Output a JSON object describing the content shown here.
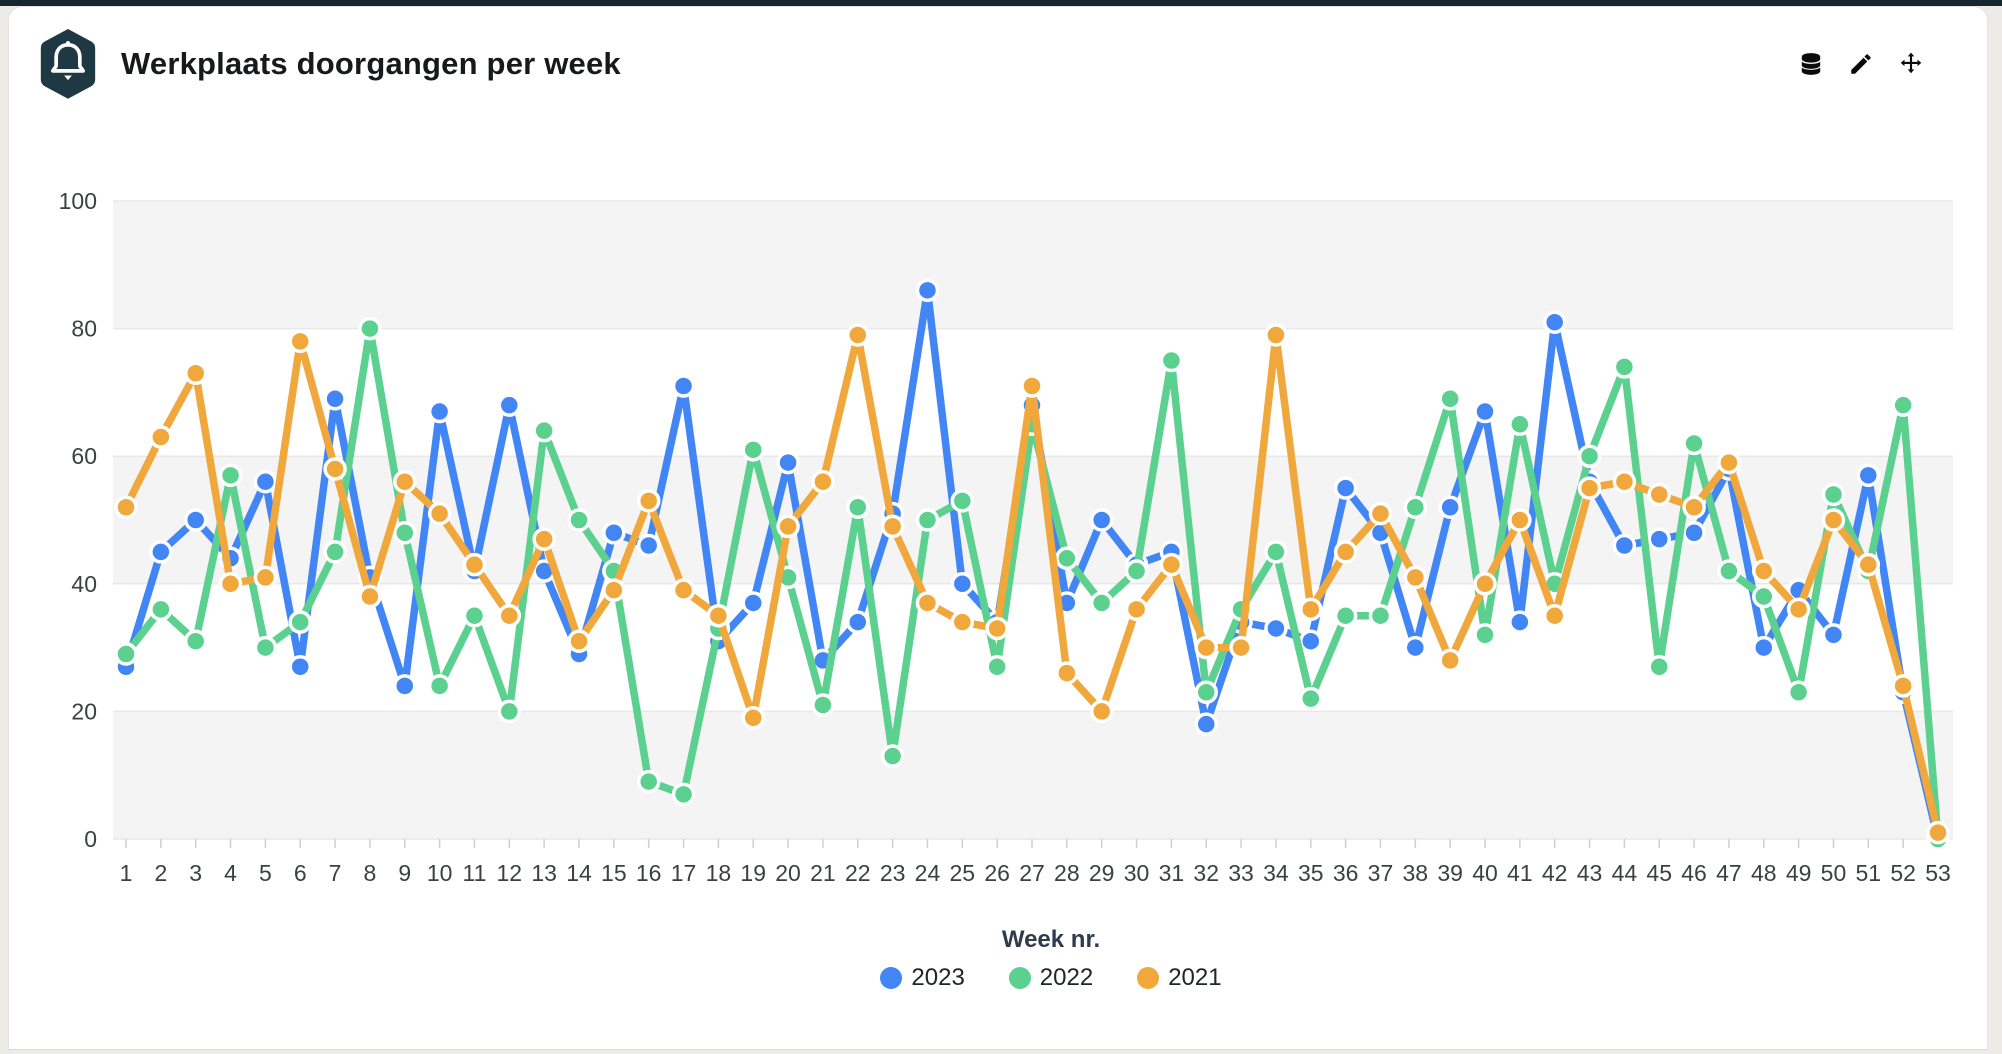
{
  "header": {
    "title": "Werkplaats doorgangen per week",
    "icons": [
      "bell-icon",
      "database-icon",
      "edit-icon",
      "move-icon"
    ]
  },
  "colors": {
    "accent_badge": "#1e3943",
    "band": "#f4f4f5",
    "grid": "#e8e8e8",
    "tick": "#cfcfcf",
    "axis_text": "#3c4043",
    "series_2023": "#4285f4",
    "series_2022": "#5bd08f",
    "series_2021": "#f0a73c"
  },
  "chart_data": {
    "type": "line",
    "title": "Werkplaats doorgangen per week",
    "xlabel": "Week nr.",
    "ylabel": "",
    "ylim": [
      0,
      100
    ],
    "yticks": [
      0,
      20,
      40,
      60,
      80,
      100
    ],
    "grid": "horizontal, alternating shaded bands 80-100 / 40-60 / 0-20",
    "legend_position": "bottom",
    "marker": "circle",
    "weeks": [
      1,
      2,
      3,
      4,
      5,
      6,
      7,
      8,
      9,
      10,
      11,
      12,
      13,
      14,
      15,
      16,
      17,
      18,
      19,
      20,
      21,
      22,
      23,
      24,
      25,
      26,
      27,
      28,
      29,
      30,
      31,
      32,
      33,
      34,
      35,
      36,
      37,
      38,
      39,
      40,
      41,
      42,
      43,
      44,
      45,
      46,
      47,
      48,
      49,
      50,
      51,
      52,
      53
    ],
    "series": [
      {
        "name": "2023",
        "color": "#4285f4",
        "values": [
          27,
          45,
          50,
          44,
          56,
          27,
          69,
          41,
          24,
          67,
          42,
          68,
          42,
          29,
          48,
          46,
          71,
          31,
          37,
          59,
          28,
          34,
          51,
          86,
          40,
          34,
          68,
          37,
          50,
          43,
          45,
          18,
          34,
          33,
          31,
          55,
          48,
          30,
          52,
          67,
          34,
          81,
          56,
          46,
          47,
          48,
          58,
          30,
          39,
          32,
          57,
          23,
          0
        ]
      },
      {
        "name": "2022",
        "color": "#5bd08f",
        "values": [
          29,
          36,
          31,
          57,
          30,
          34,
          45,
          80,
          48,
          24,
          35,
          20,
          64,
          50,
          42,
          9,
          7,
          33,
          61,
          41,
          21,
          52,
          13,
          50,
          53,
          27,
          65,
          44,
          37,
          42,
          75,
          23,
          36,
          45,
          22,
          35,
          35,
          52,
          69,
          32,
          65,
          40,
          60,
          74,
          27,
          62,
          42,
          38,
          23,
          54,
          42,
          68,
          0
        ]
      },
      {
        "name": "2021",
        "color": "#f0a73c",
        "values": [
          52,
          63,
          73,
          40,
          41,
          78,
          58,
          38,
          56,
          51,
          43,
          35,
          47,
          31,
          39,
          53,
          39,
          35,
          19,
          49,
          56,
          79,
          49,
          37,
          34,
          33,
          71,
          26,
          20,
          36,
          43,
          30,
          30,
          79,
          36,
          45,
          51,
          41,
          28,
          40,
          50,
          35,
          55,
          56,
          54,
          52,
          59,
          42,
          36,
          50,
          43,
          24,
          1
        ]
      }
    ]
  }
}
